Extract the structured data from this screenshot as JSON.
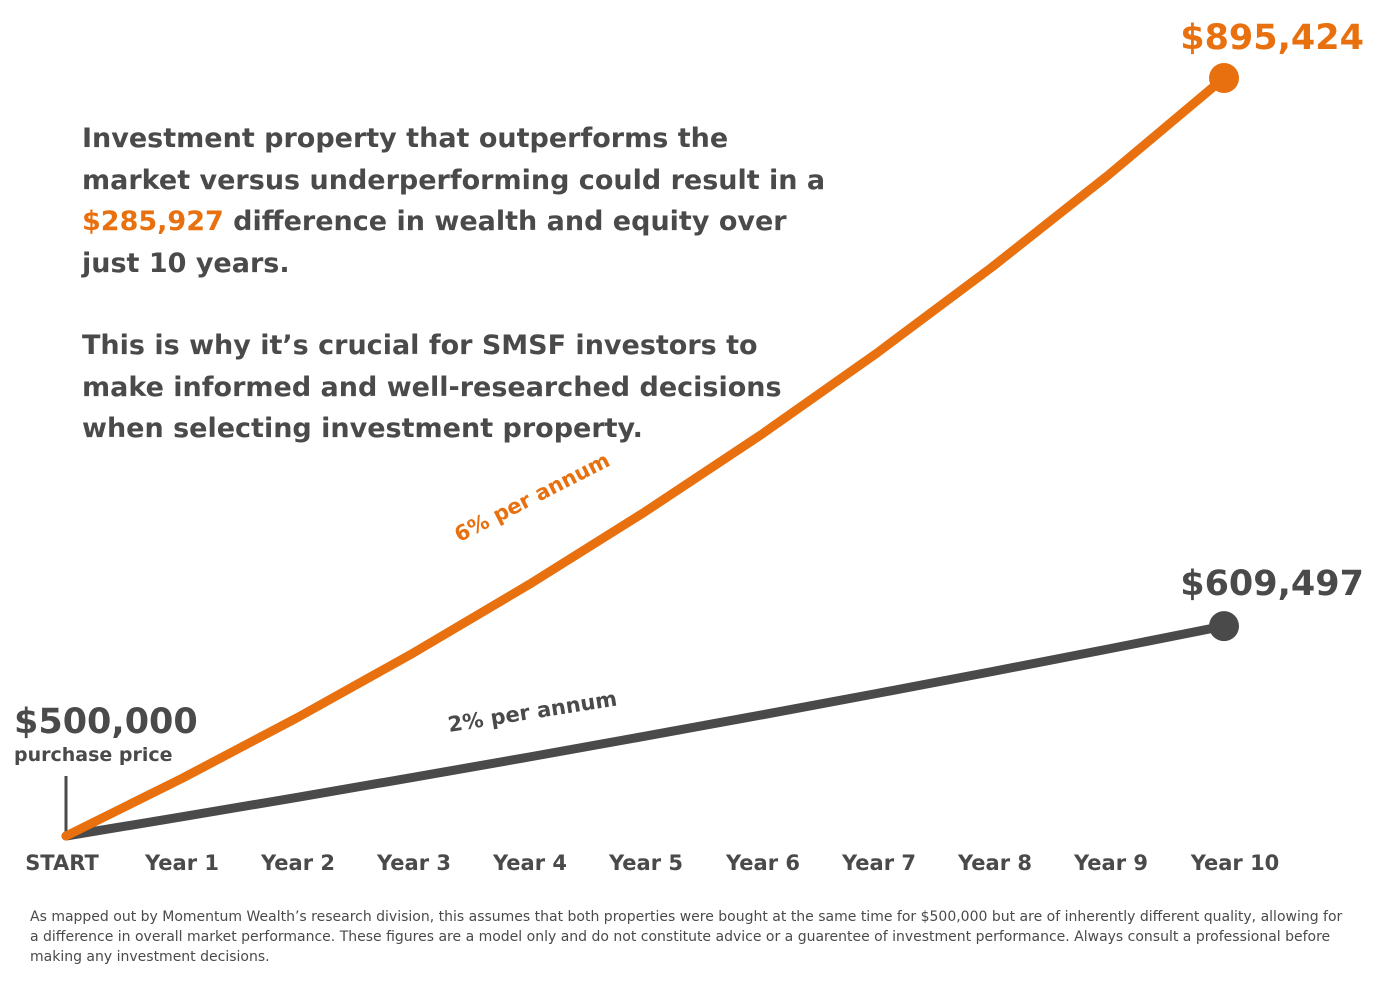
{
  "headline": {
    "line1": "Investment property that outperforms the market versus underperforming could result in a ",
    "highlight": "$285,927",
    "line1_end": " difference in wealth and equity over just 10 years.",
    "line2": "This is why it’s crucial for SMSF investors to make informed and well-researched decisions when selecting investment property."
  },
  "start_label": {
    "value": "$500,000",
    "subtitle": "purchase price"
  },
  "footnote": "As mapped out by Momentum Wealth’s research division, this assumes that both properties were bought at the same time for $500,000 but are of inherently different quality, allowing for a difference in overall market performance. These figures are a model only and do not constitute advice or a guarentee of investment performance. Always consult a professional before making any investment decisions.",
  "colors": {
    "accent": "#e8700e",
    "dark": "#4a4a4a"
  },
  "chart_data": {
    "type": "line",
    "categories": [
      "START",
      "Year 1",
      "Year 2",
      "Year 3",
      "Year 4",
      "Year 5",
      "Year 6",
      "Year 7",
      "Year 8",
      "Year 9",
      "Year 10"
    ],
    "x": [
      0,
      1,
      2,
      3,
      4,
      5,
      6,
      7,
      8,
      9,
      10
    ],
    "series": [
      {
        "name": "6% per annum",
        "values": [
          500000,
          530000,
          561800,
          595508,
          631238,
          669113,
          709259,
          751815,
          796924,
          844739,
          895424
        ],
        "end_label": "$895,424",
        "color": "#e8700e"
      },
      {
        "name": "2% per annum",
        "values": [
          500000,
          510000,
          520200,
          530604,
          541216,
          552040,
          563081,
          574343,
          585830,
          597546,
          609497
        ],
        "end_label": "$609,497",
        "color": "#4a4a4a"
      }
    ],
    "grid": false,
    "legend": "inline"
  }
}
